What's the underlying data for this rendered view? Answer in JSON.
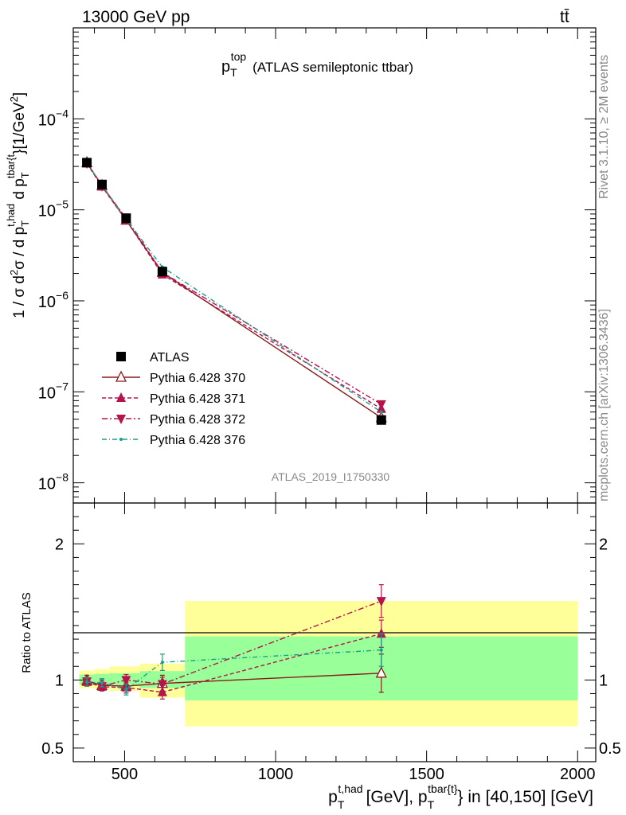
{
  "header": {
    "left": "13000 GeV pp",
    "right": "tt̄"
  },
  "side": {
    "rivet": "Rivet 3.1.10, ≥ 2M events",
    "mcplots": "mcplots.cern.ch [arXiv:1306.3436]"
  },
  "watermark": "ATLAS_2019_I1750330",
  "chart_data": [
    {
      "type": "line",
      "title": "p_T^top (ATLAS semileptonic ttbar)",
      "title_main": "p",
      "title_sub": "T",
      "title_sup": "top",
      "title_rest": "(ATLAS semileptonic ttbar)",
      "ylabel": "1 / σ d²σ / d p_T^{t,had} d p_T^{tbar{t}} [1/GeV²]",
      "yscale": "log",
      "ylim": [
        6e-09,
        0.001
      ],
      "xlim": [
        330,
        2060
      ],
      "y_ticks": [
        {
          "value": 1e-08,
          "base": "10",
          "exp": "−8"
        },
        {
          "value": 1e-07,
          "base": "10",
          "exp": "−7"
        },
        {
          "value": 1e-06,
          "base": "10",
          "exp": "−6"
        },
        {
          "value": 1e-05,
          "base": "10",
          "exp": "−5"
        },
        {
          "value": 0.0001,
          "base": "10",
          "exp": "−4"
        }
      ],
      "x": [
        375,
        425,
        505,
        625,
        1350
      ],
      "series": [
        {
          "name": "ATLAS",
          "color": "#000000",
          "marker": "square",
          "dash": "none",
          "values": [
            3.3e-05,
            1.9e-05,
            8.1e-06,
            2.1e-06,
            4.9e-08
          ]
        },
        {
          "name": "Pythia 6.428 370",
          "color": "#8b1a1a",
          "marker": "triangle-open",
          "dash": "none",
          "values": [
            3.3e-05,
            1.85e-05,
            7.7e-06,
            2.05e-06,
            5.2e-08
          ]
        },
        {
          "name": "Pythia 6.428 371",
          "color": "#b5134b",
          "marker": "triangle",
          "dash": "5,3",
          "values": [
            3.25e-05,
            1.8e-05,
            7.7e-06,
            1.95e-06,
            6.5e-08
          ]
        },
        {
          "name": "Pythia 6.428 372",
          "color": "#b5134b",
          "marker": "triangle-down",
          "dash": "7,3,2,3",
          "values": [
            3.25e-05,
            1.82e-05,
            8.1e-06,
            2.05e-06,
            7.3e-08
          ]
        },
        {
          "name": "Pythia 6.428 376",
          "color": "#1a9e8e",
          "marker": "dot",
          "dash": "6,3,1,3",
          "values": [
            3.25e-05,
            1.87e-05,
            7.9e-06,
            2.35e-06,
            6e-08
          ]
        }
      ]
    },
    {
      "type": "line",
      "ylabel": "Ratio to ATLAS",
      "ylim": [
        0.4,
        2.3
      ],
      "xlim": [
        330,
        2060
      ],
      "y_tick_labels": [
        {
          "value": 0.5,
          "label": "0.5"
        },
        {
          "value": 1,
          "label": "1"
        },
        {
          "value": 2,
          "label": "2"
        }
      ],
      "x_tick_labels": [
        {
          "value": 500,
          "label": "500"
        },
        {
          "value": 1000,
          "label": "1000"
        },
        {
          "value": 1500,
          "label": "1500"
        },
        {
          "value": 2000,
          "label": "2000"
        }
      ],
      "xlabel_parts": {
        "p": "p",
        "T": "T",
        "sup1": "t,had",
        "mid": "[GeV], p",
        "sup2": "tbar{t}",
        "end": "} in [40,150] [GeV]"
      },
      "bands": [
        {
          "x0": 350,
          "x1": 400,
          "yellow": [
            0.94,
            1.07
          ],
          "green": [
            0.965,
            1.04
          ]
        },
        {
          "x0": 400,
          "x1": 450,
          "yellow": [
            0.93,
            1.08
          ],
          "green": [
            0.96,
            1.045
          ]
        },
        {
          "x0": 450,
          "x1": 550,
          "yellow": [
            0.92,
            1.1
          ],
          "green": [
            0.955,
            1.05
          ]
        },
        {
          "x0": 550,
          "x1": 700,
          "yellow": [
            0.87,
            1.12
          ],
          "green": [
            0.94,
            1.065
          ]
        },
        {
          "x0": 700,
          "x1": 2000,
          "yellow": [
            0.66,
            1.58
          ],
          "green": [
            0.85,
            1.32
          ]
        }
      ],
      "x": [
        375,
        425,
        505,
        625,
        1350
      ],
      "series": [
        {
          "name": "Pythia 6.428 370",
          "values": [
            0.995,
            0.96,
            0.955,
            0.975,
            1.05
          ],
          "err": [
            0.04,
            0.04,
            0.05,
            0.06,
            0.14
          ]
        },
        {
          "name": "Pythia 6.428 371",
          "values": [
            0.985,
            0.95,
            0.945,
            0.91,
            1.34
          ],
          "err": [
            0.03,
            0.03,
            0.04,
            0.05,
            0.1
          ]
        },
        {
          "name": "Pythia 6.428 372",
          "values": [
            0.99,
            0.955,
            1.0,
            0.97,
            1.58
          ],
          "err": [
            0.03,
            0.03,
            0.04,
            0.05,
            0.12
          ]
        },
        {
          "name": "Pythia 6.428 376",
          "values": [
            0.985,
            0.98,
            0.93,
            1.13,
            1.22
          ],
          "err": [
            0.03,
            0.03,
            0.04,
            0.06,
            0.12
          ]
        }
      ]
    }
  ]
}
